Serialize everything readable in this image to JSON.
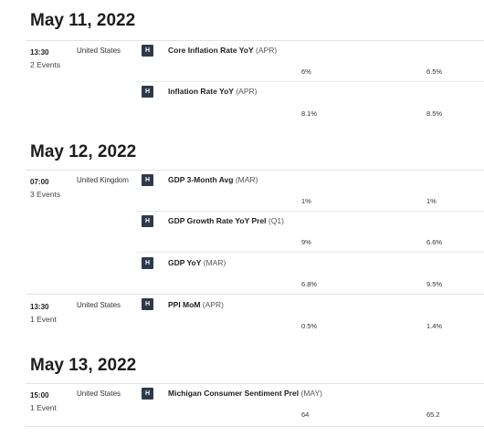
{
  "days": [
    {
      "date": "May 11, 2022",
      "groups": [
        {
          "time": "13:30",
          "count": "2 Events",
          "country": "United States",
          "events": [
            {
              "name": "Core Inflation Rate YoY",
              "period": "(APR)",
              "impact": "H",
              "col_a": "6%",
              "col_b": "6.5%"
            },
            {
              "name": "Inflation Rate YoY",
              "period": "(APR)",
              "impact": "H",
              "col_a": "8.1%",
              "col_b": "8.5%"
            }
          ]
        }
      ]
    },
    {
      "date": "May 12, 2022",
      "groups": [
        {
          "time": "07:00",
          "count": "3 Events",
          "country": "United Kingdom",
          "events": [
            {
              "name": "GDP 3-Month Avg",
              "period": "(MAR)",
              "impact": "H",
              "col_a": "1%",
              "col_b": "1%"
            },
            {
              "name": "GDP Growth Rate YoY Prel",
              "period": "(Q1)",
              "impact": "H",
              "col_a": "9%",
              "col_b": "6.6%"
            },
            {
              "name": "GDP YoY",
              "period": "(MAR)",
              "impact": "H",
              "col_a": "6.8%",
              "col_b": "9.5%"
            }
          ]
        },
        {
          "time": "13:30",
          "count": "1 Event",
          "country": "United States",
          "events": [
            {
              "name": "PPI MoM",
              "period": "(APR)",
              "impact": "H",
              "col_a": "0.5%",
              "col_b": "1.4%"
            }
          ]
        }
      ]
    },
    {
      "date": "May 13, 2022",
      "groups": [
        {
          "time": "15:00",
          "count": "1 Event",
          "country": "United States",
          "events": [
            {
              "name": "Michigan Consumer Sentiment Prel",
              "period": "(MAY)",
              "impact": "H",
              "col_a": "64",
              "col_b": "65.2"
            }
          ]
        }
      ]
    }
  ],
  "colors": {
    "impact_bg": "#2e3a4b",
    "divider": "#e3e3e3"
  }
}
